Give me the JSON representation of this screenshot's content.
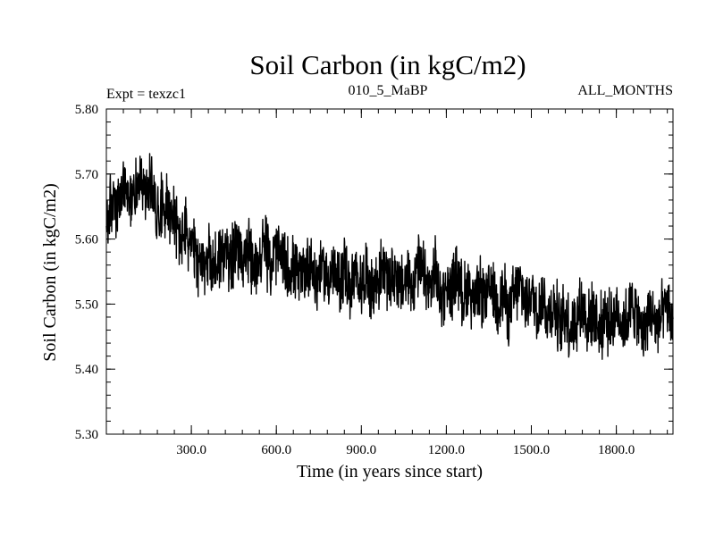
{
  "chart_data": {
    "type": "line",
    "title": "Soil Carbon (in kgC/m2)",
    "subtitle_left": "Expt = texzc1",
    "subtitle_center": "010_5_MaBP",
    "subtitle_right": "ALL_MONTHS",
    "xlabel": "Time (in years since start)",
    "ylabel": "Soil Carbon (in kgC/m2)",
    "xlim": [
      0,
      2000
    ],
    "ylim": [
      5.3,
      5.8
    ],
    "xticks": [
      300,
      600,
      900,
      1200,
      1500,
      1800
    ],
    "xtick_labels": [
      "300.0",
      "600.0",
      "900.0",
      "1200.0",
      "1500.0",
      "1800.0"
    ],
    "yticks": [
      5.3,
      5.4,
      5.5,
      5.6,
      5.7,
      5.8
    ],
    "ytick_labels": [
      "5.30",
      "5.40",
      "5.50",
      "5.60",
      "5.70",
      "5.80"
    ],
    "grid": false,
    "series": [
      {
        "name": "Soil Carbon",
        "color": "#000000",
        "x": [
          0,
          20,
          40,
          60,
          80,
          100,
          120,
          140,
          160,
          180,
          200,
          220,
          240,
          260,
          280,
          300,
          320,
          340,
          360,
          380,
          400,
          420,
          440,
          460,
          480,
          500,
          520,
          540,
          560,
          580,
          600,
          620,
          640,
          660,
          680,
          700,
          720,
          740,
          760,
          780,
          800,
          820,
          840,
          860,
          880,
          900,
          920,
          940,
          960,
          980,
          1000,
          1020,
          1040,
          1060,
          1080,
          1100,
          1120,
          1140,
          1160,
          1180,
          1200,
          1220,
          1240,
          1260,
          1280,
          1300,
          1320,
          1340,
          1360,
          1380,
          1400,
          1420,
          1440,
          1460,
          1480,
          1500,
          1520,
          1540,
          1560,
          1580,
          1600,
          1620,
          1640,
          1660,
          1680,
          1700,
          1720,
          1740,
          1760,
          1780,
          1800,
          1820,
          1840,
          1860,
          1880,
          1900,
          1920,
          1940,
          1960,
          1980,
          2000
        ],
        "values": [
          5.62,
          5.66,
          5.64,
          5.68,
          5.65,
          5.67,
          5.7,
          5.66,
          5.69,
          5.64,
          5.66,
          5.65,
          5.63,
          5.6,
          5.61,
          5.59,
          5.57,
          5.55,
          5.58,
          5.56,
          5.57,
          5.58,
          5.56,
          5.59,
          5.57,
          5.58,
          5.55,
          5.57,
          5.59,
          5.56,
          5.58,
          5.57,
          5.55,
          5.56,
          5.54,
          5.55,
          5.57,
          5.53,
          5.56,
          5.54,
          5.55,
          5.53,
          5.56,
          5.52,
          5.54,
          5.53,
          5.55,
          5.52,
          5.54,
          5.56,
          5.53,
          5.55,
          5.52,
          5.54,
          5.53,
          5.56,
          5.54,
          5.52,
          5.55,
          5.51,
          5.53,
          5.52,
          5.55,
          5.51,
          5.53,
          5.5,
          5.52,
          5.51,
          5.53,
          5.5,
          5.52,
          5.49,
          5.51,
          5.53,
          5.5,
          5.52,
          5.49,
          5.51,
          5.48,
          5.5,
          5.47,
          5.49,
          5.46,
          5.48,
          5.5,
          5.47,
          5.49,
          5.46,
          5.48,
          5.47,
          5.49,
          5.47,
          5.48,
          5.5,
          5.47,
          5.46,
          5.49,
          5.47,
          5.48,
          5.5,
          5.46
        ]
      }
    ]
  }
}
